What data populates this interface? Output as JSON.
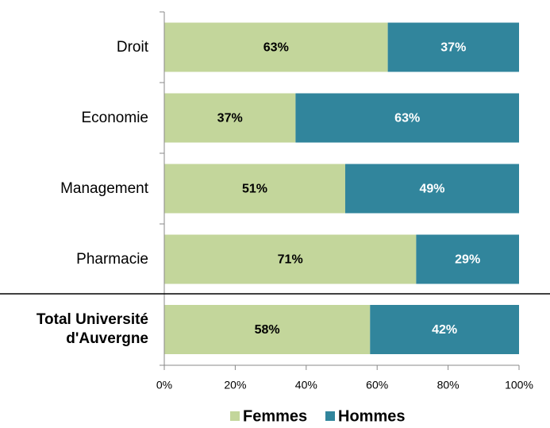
{
  "chart_data": {
    "type": "stacked-bar-horizontal",
    "categories": [
      "Droit",
      "Economie",
      "Management",
      "Pharmacie",
      "Total Université d'Auvergne"
    ],
    "series": [
      {
        "name": "Femmes",
        "color": "#c3d69b",
        "values": [
          63,
          37,
          51,
          71,
          58
        ],
        "value_labels": [
          "63%",
          "37%",
          "51%",
          "71%",
          "58%"
        ]
      },
      {
        "name": "Hommes",
        "color": "#31859c",
        "values": [
          37,
          63,
          49,
          29,
          42
        ],
        "value_labels": [
          "37%",
          "63%",
          "49%",
          "29%",
          "42%"
        ]
      }
    ],
    "xlim": [
      0,
      100
    ],
    "xticks": [
      {
        "value": 0,
        "label": "0%"
      },
      {
        "value": 20,
        "label": "20%"
      },
      {
        "value": 40,
        "label": "40%"
      },
      {
        "value": 60,
        "label": "60%"
      },
      {
        "value": 80,
        "label": "80%"
      },
      {
        "value": 100,
        "label": "100%"
      }
    ],
    "legend": "bottom"
  }
}
